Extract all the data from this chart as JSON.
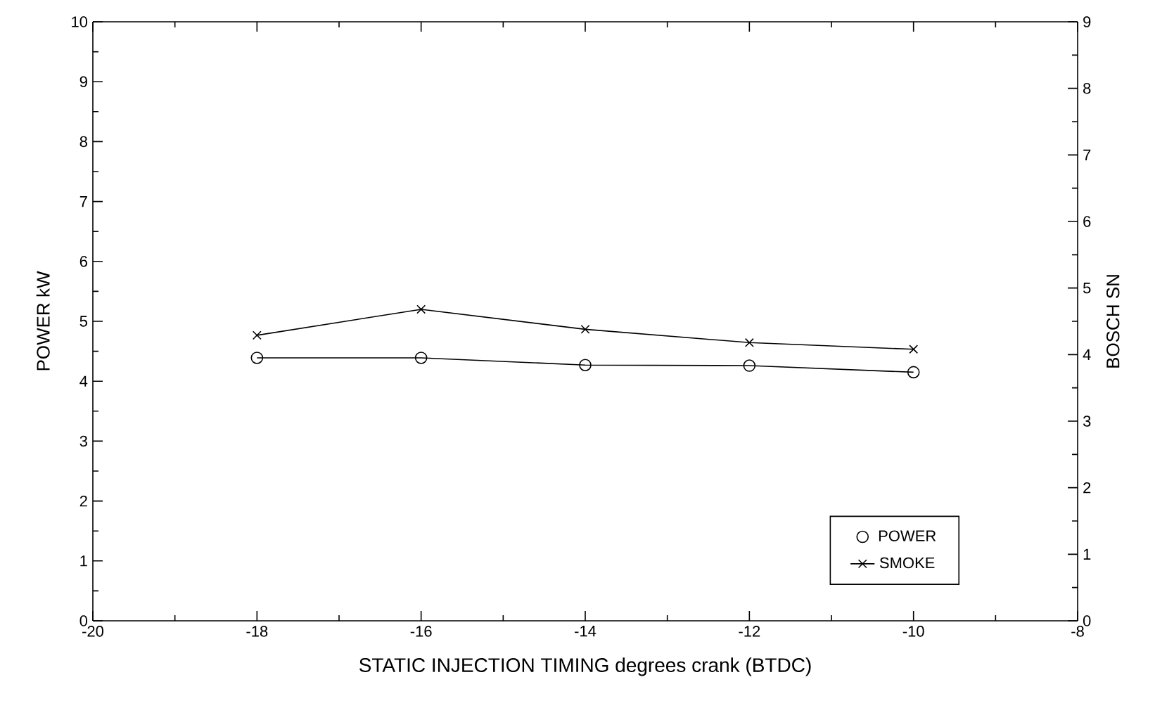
{
  "chart_data": {
    "type": "line",
    "xlabel": "STATIC  INJECTION  TIMING    degrees  crank     (BTDC)",
    "ylabel": "POWER   kW",
    "y2label": "BOSCH  SN",
    "x": [
      -18,
      -16,
      -14,
      -12,
      -10
    ],
    "series": [
      {
        "name": "POWER",
        "color": "#000000",
        "marker": "circle",
        "values": [
          4.39,
          4.39,
          4.27,
          4.26,
          4.15
        ]
      },
      {
        "name": "SMOKE",
        "color": "#000000",
        "marker": "cross",
        "axis": "y2",
        "values": [
          4.29,
          4.68,
          4.38,
          4.18,
          4.08
        ]
      }
    ],
    "xlim": [
      -20,
      -8
    ],
    "xticks": [
      -20,
      -18,
      -16,
      -14,
      -12,
      -10,
      -8
    ],
    "ylim": [
      0,
      10
    ],
    "yticks": [
      0,
      1,
      2,
      3,
      4,
      5,
      6,
      7,
      8,
      9,
      10
    ],
    "y2lim": [
      0,
      9
    ],
    "y2ticks": [
      0,
      1,
      2,
      3,
      4,
      5,
      6,
      7,
      8,
      9
    ],
    "grid": false,
    "legend": "bottom right"
  }
}
